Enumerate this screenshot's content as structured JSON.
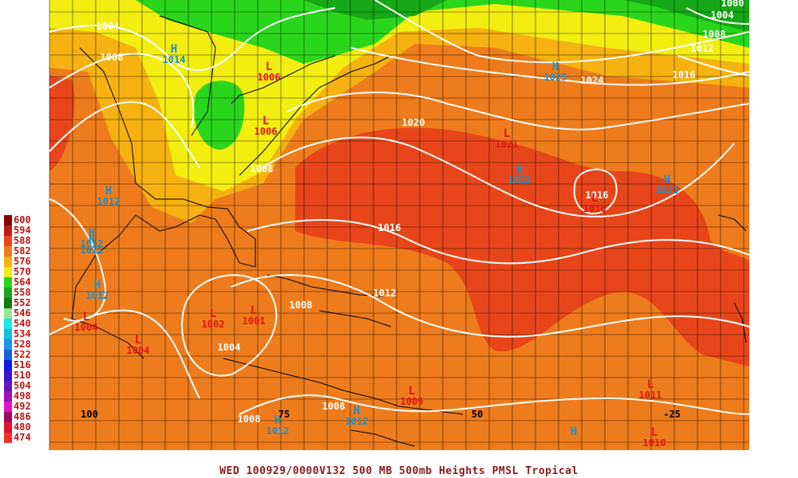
{
  "caption": "WED 100929/0000V132   500 MB 500mb Heights PMSL Tropical",
  "legend": [
    {
      "label": "600",
      "color": "#8b0000"
    },
    {
      "label": "594",
      "color": "#c21a1a"
    },
    {
      "label": "588",
      "color": "#e8461a"
    },
    {
      "label": "582",
      "color": "#ee7c1c"
    },
    {
      "label": "576",
      "color": "#f5b210"
    },
    {
      "label": "570",
      "color": "#f2ee10"
    },
    {
      "label": "564",
      "color": "#2ad61c"
    },
    {
      "label": "558",
      "color": "#16a816"
    },
    {
      "label": "552",
      "color": "#0c7c0c"
    },
    {
      "label": "546",
      "color": "#8ee88e"
    },
    {
      "label": "540",
      "color": "#14e8e8"
    },
    {
      "label": "534",
      "color": "#12c0e0"
    },
    {
      "label": "528",
      "color": "#1496e8"
    },
    {
      "label": "522",
      "color": "#1460e0"
    },
    {
      "label": "516",
      "color": "#0a1ae8"
    },
    {
      "label": "510",
      "color": "#3a14c8"
    },
    {
      "label": "504",
      "color": "#6a14b8"
    },
    {
      "label": "498",
      "color": "#9c14b0"
    },
    {
      "label": "492",
      "color": "#e014c8"
    },
    {
      "label": "486",
      "color": "#a00a64"
    },
    {
      "label": "480",
      "color": "#e01428"
    },
    {
      "label": "474",
      "color": "#f03030"
    }
  ],
  "contour_labels": [
    {
      "text": "1004"
    },
    {
      "text": "1008"
    },
    {
      "text": "1004"
    },
    {
      "text": "1000"
    },
    {
      "text": "1008"
    },
    {
      "text": "1012"
    },
    {
      "text": "1016"
    },
    {
      "text": "1024"
    },
    {
      "text": "1020"
    },
    {
      "text": "1016"
    },
    {
      "text": "1016"
    },
    {
      "text": "1012"
    },
    {
      "text": "1008"
    },
    {
      "text": "1008"
    },
    {
      "text": "1004"
    },
    {
      "text": "1008"
    },
    {
      "text": "1008"
    }
  ],
  "highs": [
    {
      "value": "1014"
    },
    {
      "value": "1025"
    },
    {
      "value": "1012"
    },
    {
      "value": "1012"
    },
    {
      "value": "1012"
    },
    {
      "value": "1012"
    },
    {
      "value": "1022"
    },
    {
      "value": "1023"
    },
    {
      "value": "1012"
    },
    {
      "value": "1012"
    },
    {
      "value": ""
    }
  ],
  "lows": [
    {
      "value": "1006"
    },
    {
      "value": "1006"
    },
    {
      "value": "1021"
    },
    {
      "value": "1016"
    },
    {
      "value": "1004"
    },
    {
      "value": "1004"
    },
    {
      "value": "1002"
    },
    {
      "value": "1001"
    },
    {
      "value": "1009"
    },
    {
      "value": "1011"
    },
    {
      "value": "1010"
    }
  ],
  "axis_labels": [
    {
      "text": "100"
    },
    {
      "text": "75"
    },
    {
      "text": "50"
    },
    {
      "text": "-25"
    }
  ],
  "symbol_high": "H",
  "symbol_low": "L",
  "colors": {
    "high_symbol": "#1e90c8",
    "low_symbol": "#e01414",
    "contour": "#ffffff",
    "grid": "#000000"
  }
}
